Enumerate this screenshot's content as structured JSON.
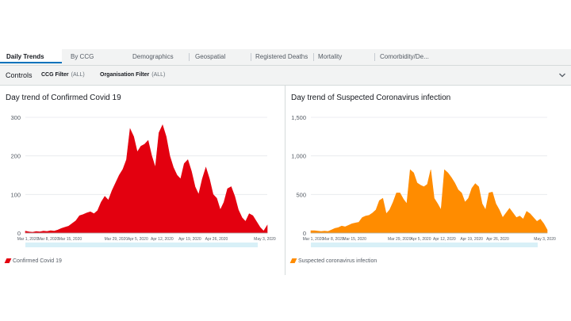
{
  "tabs": [
    {
      "label": "Daily Trends",
      "active": true
    },
    {
      "label": "By CCG"
    },
    {
      "label": "Demographics"
    },
    {
      "label": "Geospatial"
    },
    {
      "label": "Registered Deaths"
    },
    {
      "label": "Mortality"
    },
    {
      "label": "Comorbidity/De..."
    }
  ],
  "controls": {
    "label": "Controls",
    "filters": [
      {
        "name": "CCG Filter",
        "value": "(ALL)"
      },
      {
        "name": "Organisation Filter",
        "value": "(ALL)"
      }
    ]
  },
  "icons": {
    "collapse": "chevron-down-icon"
  },
  "colors": {
    "confirmed": "#e3000f",
    "suspected": "#ff8c00",
    "accent": "#0073bb"
  },
  "chart_data": [
    {
      "type": "area",
      "title": "Day trend of Confirmed Covid 19",
      "legend": "Confirmed Covid 19",
      "ylim": [
        0,
        300
      ],
      "yticks": [
        "300",
        "200",
        "100",
        "0"
      ],
      "xticks": [
        "Mar 1, 2020",
        "Mar 8, 2020",
        "Mar 15, 2020",
        "Mar 29, 2020",
        "Apr 5, 2020",
        "Apr 12, 2020",
        "Apr 19, 2020",
        "Apr 26, 2020",
        "May 3, 2020"
      ],
      "values": [
        5,
        3,
        2,
        4,
        3,
        5,
        4,
        6,
        5,
        8,
        12,
        15,
        18,
        25,
        32,
        45,
        48,
        52,
        55,
        50,
        58,
        80,
        95,
        85,
        110,
        130,
        150,
        165,
        190,
        270,
        250,
        210,
        225,
        230,
        240,
        200,
        170,
        260,
        280,
        250,
        200,
        170,
        150,
        140,
        180,
        190,
        160,
        120,
        100,
        140,
        170,
        140,
        100,
        90,
        60,
        80,
        115,
        120,
        95,
        60,
        40,
        30,
        50,
        45,
        30,
        15,
        5,
        20
      ]
    },
    {
      "type": "area",
      "title": "Day trend of Suspected Coronavirus infection",
      "legend": "Suspected coronavirus infection",
      "ylim": [
        0,
        1500
      ],
      "yticks": [
        "1,500",
        "1,000",
        "500",
        "0"
      ],
      "xticks": [
        "Mar 1, 2020",
        "Mar 8, 2020",
        "Mar 15, 2020",
        "Mar 29, 2020",
        "Apr 5, 2020",
        "Apr 12, 2020",
        "Apr 19, 2020",
        "Apr 26, 2020",
        "May 3, 2020"
      ],
      "values": [
        30,
        30,
        25,
        20,
        25,
        20,
        40,
        60,
        70,
        90,
        80,
        100,
        120,
        130,
        140,
        200,
        220,
        230,
        260,
        300,
        420,
        450,
        250,
        300,
        400,
        520,
        520,
        440,
        380,
        820,
        780,
        650,
        620,
        600,
        630,
        820,
        450,
        380,
        300,
        820,
        780,
        720,
        650,
        560,
        520,
        400,
        450,
        580,
        640,
        600,
        380,
        300,
        520,
        530,
        380,
        300,
        200,
        260,
        320,
        260,
        200,
        220,
        180,
        280,
        250,
        200,
        150,
        180,
        120,
        40
      ]
    }
  ]
}
